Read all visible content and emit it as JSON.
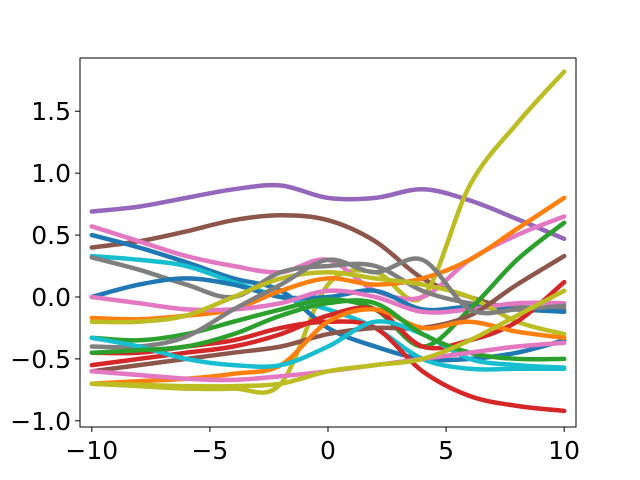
{
  "chart_data": {
    "type": "line",
    "title": "",
    "xlabel": "",
    "ylabel": "",
    "xlim": [
      -10.5,
      10.5
    ],
    "ylim": [
      -1.05,
      1.93
    ],
    "grid": false,
    "legend": "none",
    "x_ticks": [
      {
        "value": -10,
        "label": "−10"
      },
      {
        "value": -5,
        "label": "−5"
      },
      {
        "value": 0,
        "label": "0"
      },
      {
        "value": 5,
        "label": "5"
      },
      {
        "value": 10,
        "label": "10"
      }
    ],
    "y_ticks": [
      {
        "value": -1.0,
        "label": "−1.0"
      },
      {
        "value": -0.5,
        "label": "−0.5"
      },
      {
        "value": 0.0,
        "label": "0.0"
      },
      {
        "value": 0.5,
        "label": "0.5"
      },
      {
        "value": 1.0,
        "label": "1.0"
      },
      {
        "value": 1.5,
        "label": "1.5"
      }
    ],
    "x": [
      -10,
      -8,
      -6,
      -4,
      -2,
      0,
      2,
      4,
      6,
      8,
      10
    ],
    "series": [
      {
        "color": "#9467bd",
        "values": [
          0.69,
          0.73,
          0.8,
          0.87,
          0.9,
          0.8,
          0.8,
          0.87,
          0.78,
          0.63,
          0.47
        ]
      },
      {
        "color": "#8c564b",
        "values": [
          0.4,
          0.45,
          0.53,
          0.62,
          0.66,
          0.62,
          0.45,
          0.15,
          0.0,
          -0.1,
          -0.1
        ]
      },
      {
        "color": "#bcbd22",
        "values": [
          -0.7,
          -0.72,
          -0.74,
          -0.74,
          -0.7,
          0.1,
          0.2,
          0.0,
          0.9,
          1.4,
          1.82
        ]
      },
      {
        "color": "#1f77b4",
        "values": [
          0.5,
          0.4,
          0.28,
          0.15,
          0.05,
          -0.25,
          -0.4,
          -0.5,
          -0.5,
          -0.45,
          -0.35
        ]
      },
      {
        "color": "#e377c2",
        "values": [
          0.57,
          0.45,
          0.33,
          0.25,
          0.2,
          0.3,
          0.05,
          0.0,
          0.3,
          0.5,
          0.65
        ]
      },
      {
        "color": "#17becf",
        "values": [
          0.33,
          0.3,
          0.25,
          0.12,
          0.0,
          -0.1,
          -0.25,
          -0.5,
          -0.58,
          -0.58,
          -0.58
        ]
      },
      {
        "color": "#7f7f7f",
        "values": [
          0.32,
          0.22,
          0.1,
          0.0,
          0.2,
          0.25,
          0.25,
          0.05,
          -0.05,
          -0.08,
          -0.1
        ]
      },
      {
        "color": "#1f77b4",
        "values": [
          0.0,
          0.1,
          0.15,
          0.1,
          0.0,
          0.0,
          0.05,
          -0.1,
          -0.08,
          -0.1,
          -0.12
        ]
      },
      {
        "color": "#ff7f0e",
        "values": [
          -0.17,
          -0.18,
          -0.15,
          -0.1,
          0.05,
          0.15,
          0.1,
          0.15,
          0.3,
          0.55,
          0.8
        ]
      },
      {
        "color": "#e377c2",
        "values": [
          0.0,
          -0.05,
          -0.1,
          -0.1,
          -0.05,
          0.05,
          0.0,
          -0.12,
          -0.1,
          -0.05,
          -0.05
        ]
      },
      {
        "color": "#bcbd22",
        "values": [
          -0.2,
          -0.2,
          -0.15,
          0.0,
          0.15,
          0.2,
          0.15,
          0.1,
          0.0,
          -0.2,
          -0.3
        ]
      },
      {
        "color": "#2ca02c",
        "values": [
          -0.33,
          -0.35,
          -0.3,
          -0.2,
          -0.1,
          -0.02,
          -0.1,
          -0.4,
          -0.1,
          0.3,
          0.6
        ]
      },
      {
        "color": "#d62728",
        "values": [
          -0.45,
          -0.45,
          -0.4,
          -0.35,
          -0.25,
          -0.2,
          -0.25,
          -0.6,
          -0.8,
          -0.88,
          -0.92
        ]
      },
      {
        "color": "#8c564b",
        "values": [
          -0.6,
          -0.55,
          -0.5,
          -0.45,
          -0.4,
          -0.3,
          -0.25,
          -0.25,
          -0.15,
          0.1,
          0.33
        ]
      },
      {
        "color": "#d62728",
        "values": [
          -0.55,
          -0.5,
          -0.45,
          -0.4,
          -0.3,
          -0.15,
          -0.1,
          -0.4,
          -0.35,
          -0.2,
          0.12
        ]
      },
      {
        "color": "#ff7f0e",
        "values": [
          -0.7,
          -0.68,
          -0.66,
          -0.62,
          -0.55,
          -0.2,
          -0.1,
          -0.25,
          -0.2,
          -0.28,
          -0.33
        ]
      },
      {
        "color": "#7f7f7f",
        "values": [
          -0.4,
          -0.4,
          -0.32,
          -0.1,
          0.1,
          0.3,
          0.2,
          0.3,
          -0.1,
          -0.1,
          -0.07
        ]
      },
      {
        "color": "#17becf",
        "values": [
          -0.33,
          -0.4,
          -0.5,
          -0.55,
          -0.55,
          -0.4,
          -0.2,
          -0.3,
          -0.5,
          -0.55,
          -0.57
        ]
      },
      {
        "color": "#2ca02c",
        "values": [
          -0.45,
          -0.43,
          -0.4,
          -0.3,
          -0.15,
          -0.05,
          -0.05,
          -0.3,
          -0.45,
          -0.5,
          -0.5
        ]
      },
      {
        "color": "#e377c2",
        "values": [
          -0.6,
          -0.63,
          -0.66,
          -0.67,
          -0.64,
          -0.6,
          -0.55,
          -0.5,
          -0.45,
          -0.4,
          -0.37
        ]
      },
      {
        "color": "#bcbd22",
        "values": [
          -0.7,
          -0.71,
          -0.72,
          -0.72,
          -0.7,
          -0.6,
          -0.55,
          -0.5,
          -0.35,
          -0.15,
          0.05
        ]
      }
    ]
  }
}
